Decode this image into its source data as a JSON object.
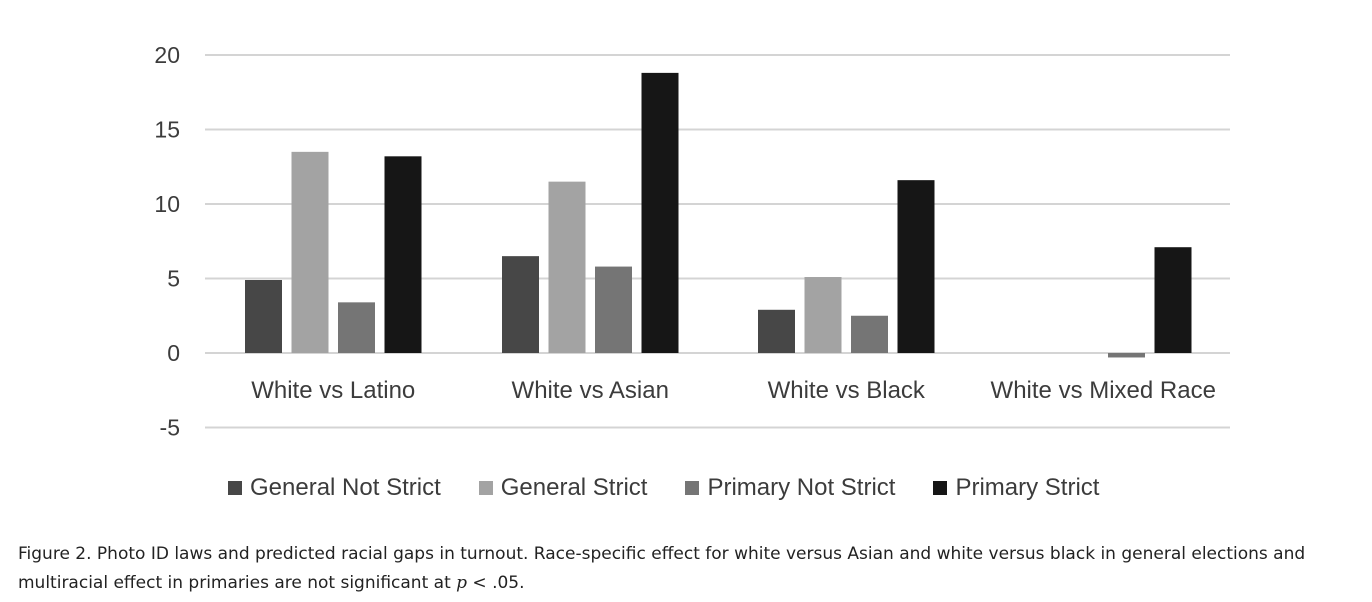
{
  "chart_data": {
    "type": "bar",
    "categories": [
      "White vs Latino",
      "White vs Asian",
      "White vs Black",
      "White vs Mixed Race"
    ],
    "series": [
      {
        "name": "General Not Strict",
        "color": "#474747",
        "values": [
          4.9,
          6.5,
          2.9,
          0
        ]
      },
      {
        "name": "General Strict",
        "color": "#a3a3a3",
        "values": [
          13.5,
          11.5,
          5.1,
          0
        ]
      },
      {
        "name": "Primary Not Strict",
        "color": "#757575",
        "values": [
          3.4,
          5.8,
          2.5,
          -0.3
        ]
      },
      {
        "name": "Primary Strict",
        "color": "#161616",
        "values": [
          13.2,
          18.8,
          11.6,
          7.1
        ]
      }
    ],
    "yticks": [
      "20",
      "15",
      "10",
      "5",
      "0",
      "-5"
    ],
    "ylim": [
      -5,
      20
    ],
    "grid": true,
    "legend_position": "bottom"
  },
  "caption": {
    "line1": "Figure 2. Photo ID laws and predicted racial gaps in turnout. Race-specific effect for white versus Asian and white versus black in general elections and",
    "line2_before": "multiracial effect in primaries are not significant at ",
    "line2_var": "p",
    "line2_after": " < .05."
  }
}
